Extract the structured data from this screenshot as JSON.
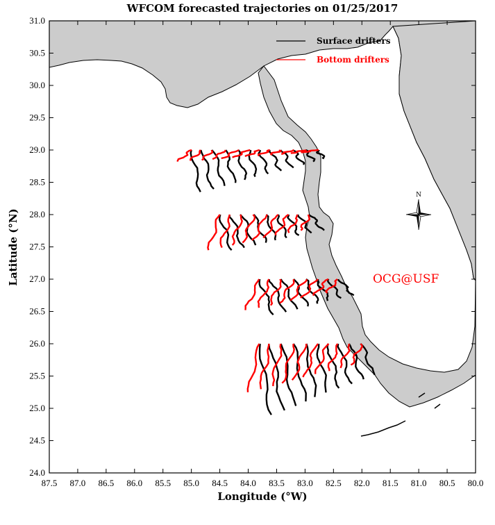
{
  "title": "WFCOM forecasted trajectories on 01/25/2017",
  "x_axis": {
    "label": "Longitude (°W)",
    "ticks": [
      "87.5",
      "87.0",
      "86.5",
      "86.0",
      "85.5",
      "85.0",
      "84.5",
      "84.0",
      "83.5",
      "83.0",
      "82.5",
      "82.0",
      "81.5",
      "81.0",
      "80.5",
      "80.0"
    ]
  },
  "y_axis": {
    "label": "Latitude (°N)",
    "ticks": [
      "31.0",
      "30.5",
      "30.0",
      "29.5",
      "29.0",
      "28.5",
      "28.0",
      "27.5",
      "27.0",
      "26.5",
      "26.0",
      "25.5",
      "25.0",
      "24.5",
      "24.0"
    ]
  },
  "legend": {
    "placement": "top-right",
    "items": [
      {
        "label": "Surface drifters",
        "color": "#000000"
      },
      {
        "label": "Bottom drifters",
        "color": "#ff0000"
      }
    ]
  },
  "credit": "OCG@USF",
  "compass_label": "N",
  "colors": {
    "land": "#cccccc",
    "coast": "#000000",
    "surface": "#000000",
    "bottom": "#ff0000"
  },
  "chart_data": {
    "type": "map",
    "xlim": [
      87.5,
      80.0
    ],
    "ylim": [
      24.0,
      31.0
    ],
    "grid": false,
    "release_rows": [
      {
        "lat": 29.0,
        "start_lons": [
          85.0,
          84.8,
          84.6,
          84.4,
          84.2,
          84.0,
          83.8,
          83.6,
          83.4,
          83.2,
          83.0,
          82.8
        ]
      },
      {
        "lat": 28.0,
        "start_lons": [
          84.5,
          84.3,
          84.1,
          83.9,
          83.7,
          83.5,
          83.3,
          83.1,
          82.9
        ]
      },
      {
        "lat": 27.0,
        "start_lons": [
          83.8,
          83.6,
          83.4,
          83.2,
          83.0,
          82.8,
          82.6,
          82.4
        ]
      },
      {
        "lat": 26.0,
        "start_lons": [
          83.8,
          83.6,
          83.4,
          83.2,
          83.0,
          82.8,
          82.6,
          82.4,
          82.2,
          82.0
        ]
      }
    ]
  }
}
